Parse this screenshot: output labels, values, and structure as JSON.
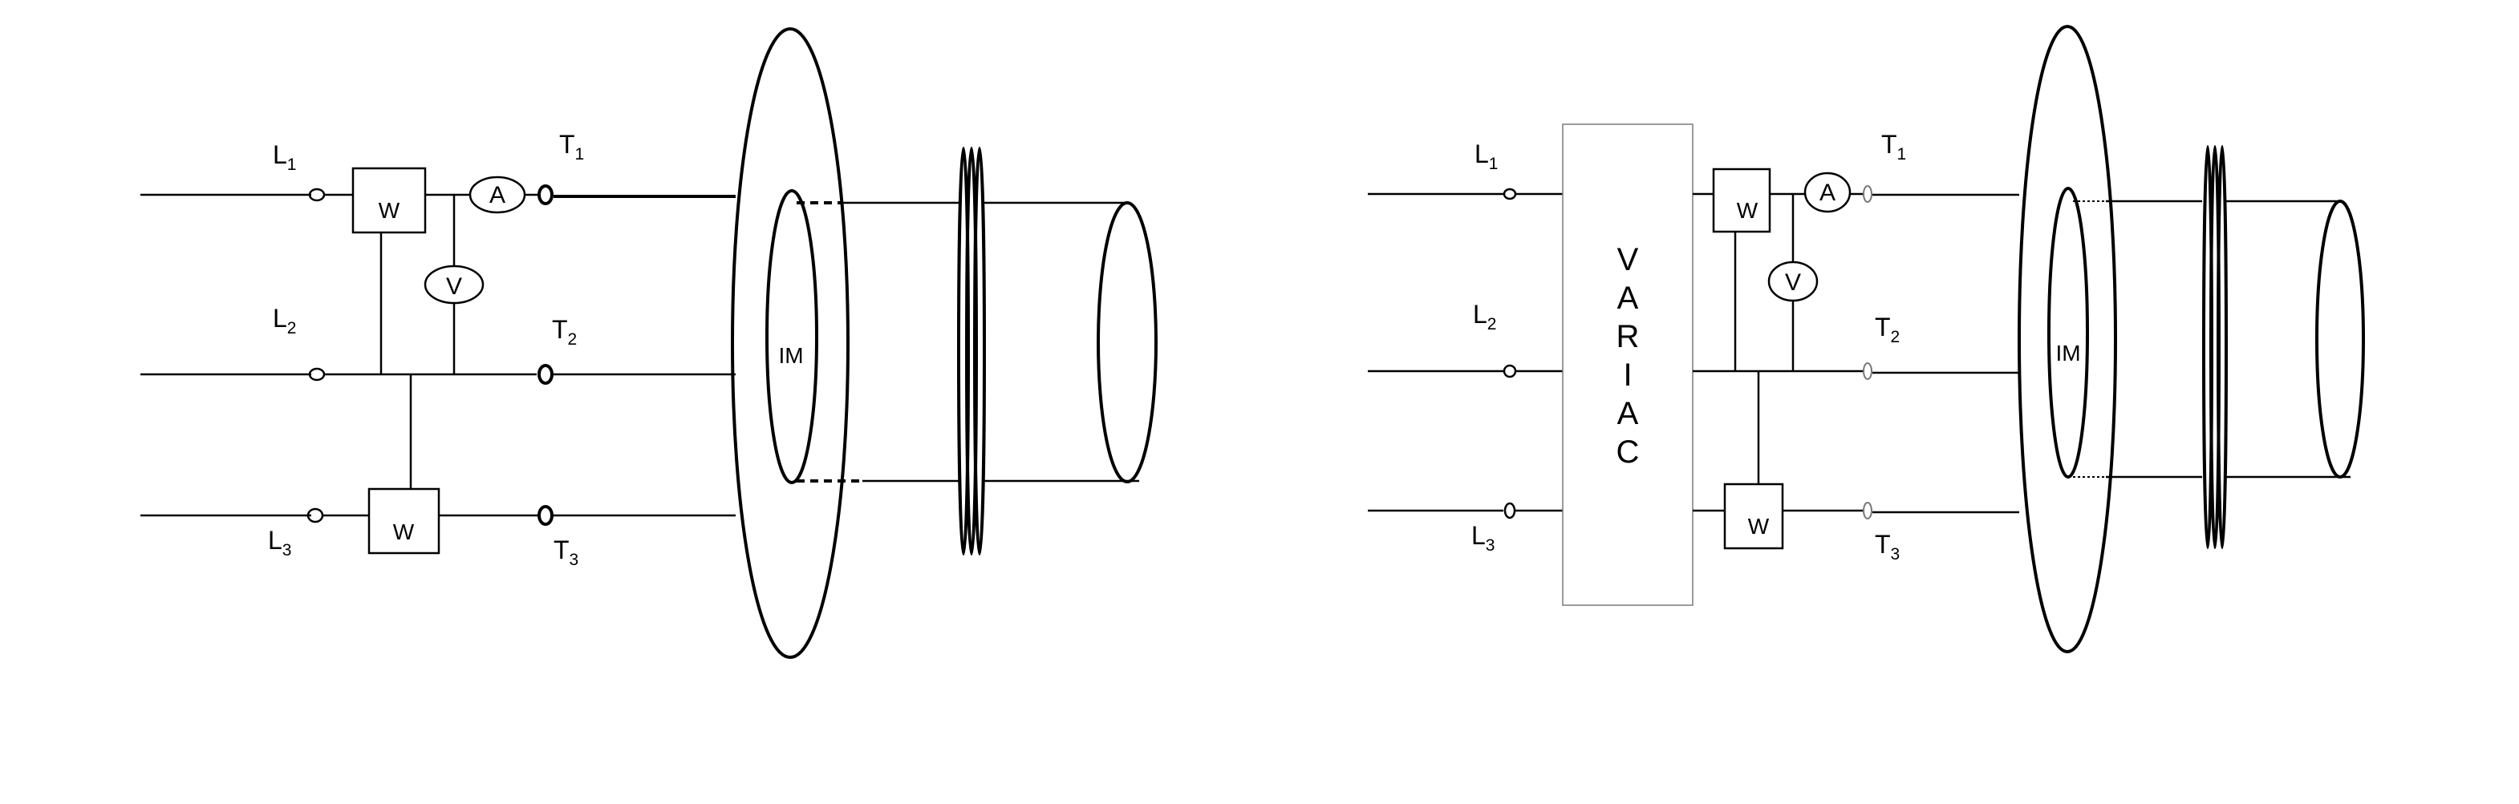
{
  "left_diagram": {
    "lines": [
      {
        "base": "L",
        "sub": "1"
      },
      {
        "base": "L",
        "sub": "2"
      },
      {
        "base": "L",
        "sub": "3"
      }
    ],
    "terminals": [
      {
        "base": "T",
        "sub": "1"
      },
      {
        "base": "T",
        "sub": "2"
      },
      {
        "base": "T",
        "sub": "3"
      }
    ],
    "wattmeter_1": "W",
    "wattmeter_2": "W",
    "ammeter": "A",
    "voltmeter": "V",
    "motor": "IM"
  },
  "right_diagram": {
    "lines": [
      {
        "base": "L",
        "sub": "1"
      },
      {
        "base": "L",
        "sub": "2"
      },
      {
        "base": "L",
        "sub": "3"
      }
    ],
    "terminals": [
      {
        "base": "T",
        "sub": "1"
      },
      {
        "base": "T",
        "sub": "2"
      },
      {
        "base": "T",
        "sub": "3"
      }
    ],
    "variac_letters": [
      "V",
      "A",
      "R",
      "I",
      "A",
      "C"
    ],
    "wattmeter_1": "W",
    "wattmeter_2": "W",
    "ammeter": "A",
    "voltmeter": "V",
    "motor": "IM"
  }
}
